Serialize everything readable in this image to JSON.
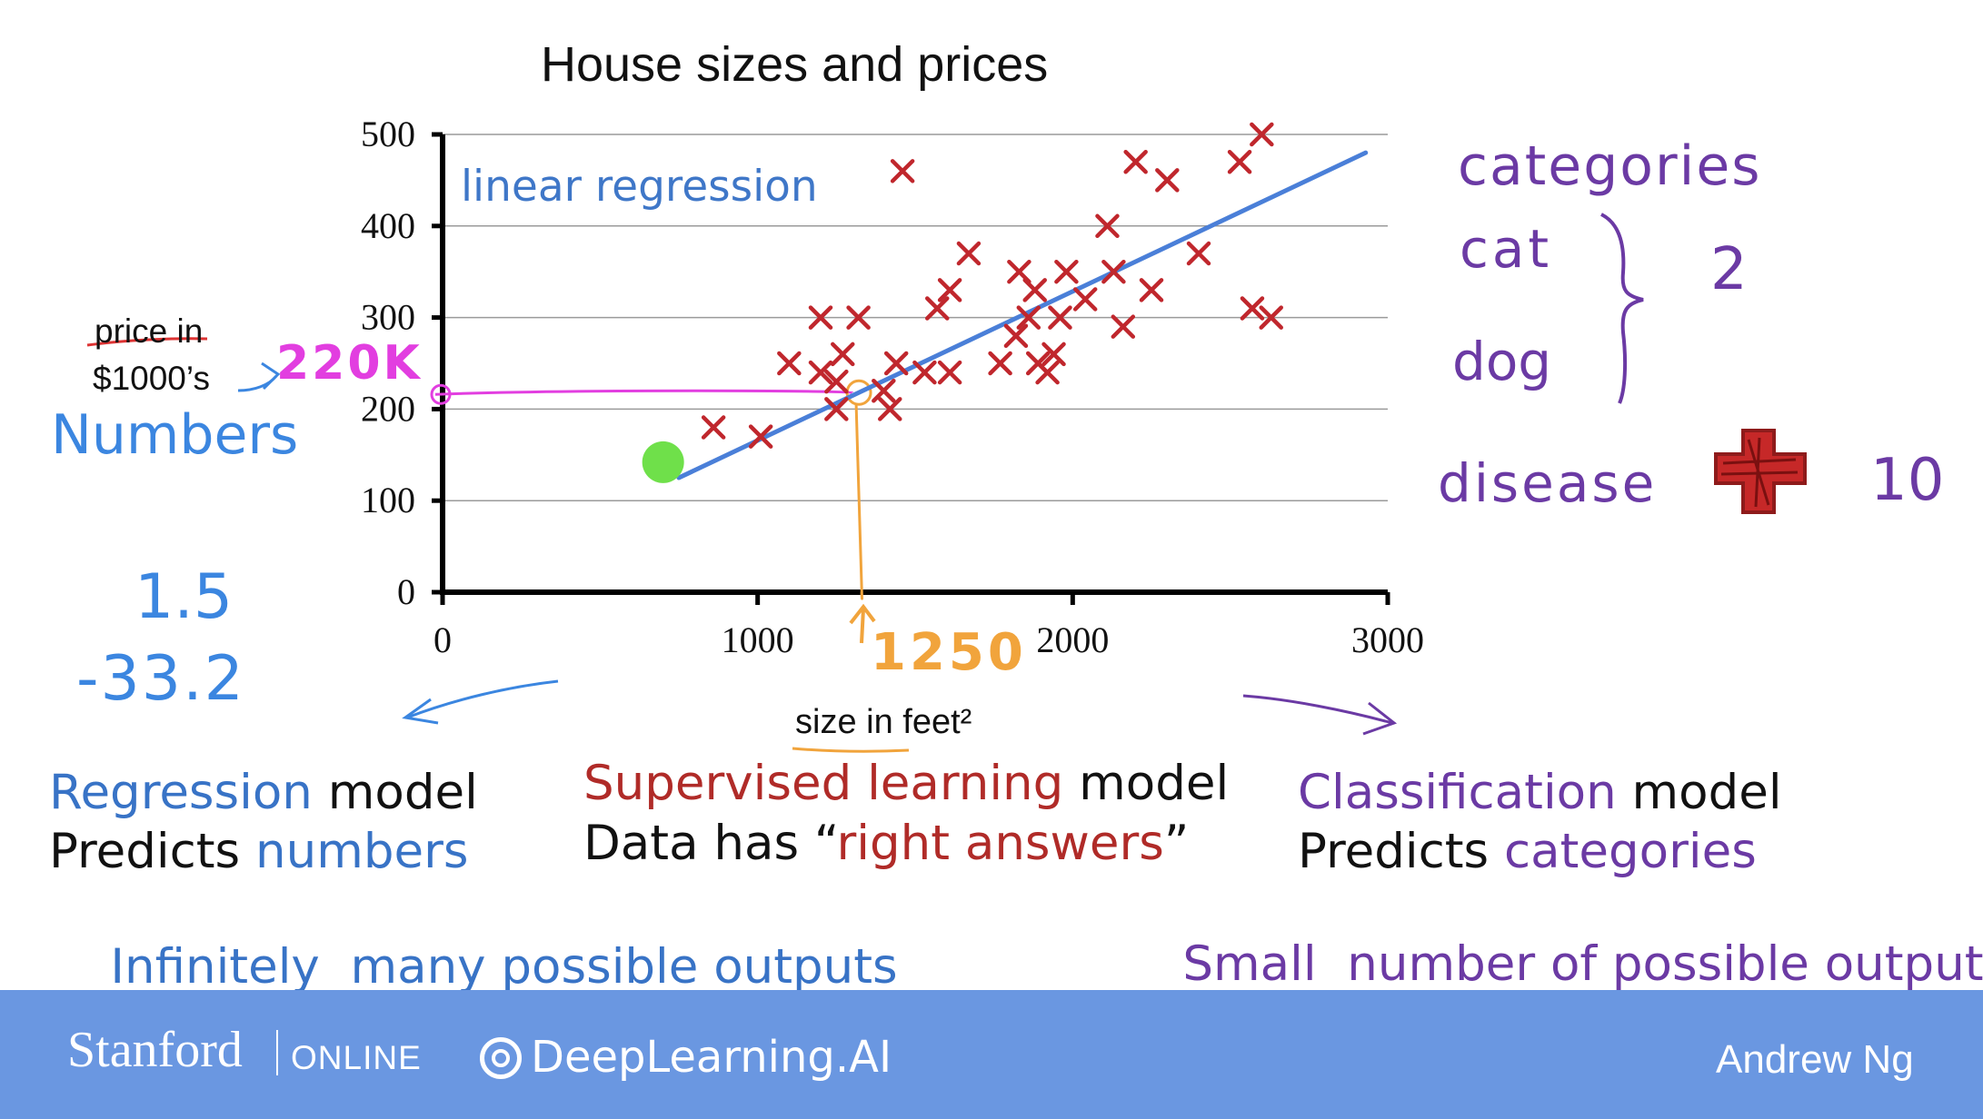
{
  "chart_data": {
    "type": "scatter",
    "title": "House sizes and prices",
    "xlabel": "size in feet²",
    "ylabel": "price in $1000’s",
    "xlim": [
      0,
      3000
    ],
    "ylim": [
      0,
      500
    ],
    "x_ticks": [
      "0",
      "1000",
      "2000",
      "3000"
    ],
    "y_ticks": [
      "0",
      "100",
      "200",
      "300",
      "400",
      "500"
    ],
    "grid": true,
    "series": [
      {
        "name": "",
        "marker": "x",
        "color": "#c0272d",
        "points": [
          [
            860,
            180
          ],
          [
            1010,
            170
          ],
          [
            1100,
            250
          ],
          [
            1200,
            300
          ],
          [
            1200,
            240
          ],
          [
            1250,
            200
          ],
          [
            1250,
            230
          ],
          [
            1270,
            260
          ],
          [
            1320,
            300
          ],
          [
            1400,
            220
          ],
          [
            1420,
            200
          ],
          [
            1440,
            250
          ],
          [
            1460,
            460
          ],
          [
            1530,
            240
          ],
          [
            1570,
            310
          ],
          [
            1610,
            330
          ],
          [
            1610,
            240
          ],
          [
            1670,
            370
          ],
          [
            1770,
            250
          ],
          [
            1820,
            280
          ],
          [
            1830,
            350
          ],
          [
            1860,
            300
          ],
          [
            1880,
            330
          ],
          [
            1890,
            250
          ],
          [
            1920,
            240
          ],
          [
            1940,
            260
          ],
          [
            1960,
            300
          ],
          [
            1980,
            350
          ],
          [
            2040,
            320
          ],
          [
            2110,
            400
          ],
          [
            2130,
            350
          ],
          [
            2160,
            290
          ],
          [
            2200,
            470
          ],
          [
            2250,
            330
          ],
          [
            2300,
            450
          ],
          [
            2400,
            370
          ],
          [
            2530,
            470
          ],
          [
            2570,
            310
          ],
          [
            2600,
            500
          ],
          [
            2630,
            300
          ]
        ]
      }
    ],
    "regression_line": {
      "name": "linear regression",
      "color": "#4a7fd8",
      "x": [
        750,
        2930
      ],
      "y": [
        125,
        480
      ]
    },
    "highlight_point": {
      "x": 700,
      "y": 142,
      "color": "#6fe04a"
    }
  },
  "annotations": {
    "model_label": "linear regression",
    "y_axis_label_line1": "price in",
    "y_axis_label_line2": "$1000’s",
    "price_read": "220K",
    "size_read": "1250",
    "numbers_note": "Numbers",
    "output_example_1": "1.5",
    "output_example_2": "-33.2",
    "categories_title": "categories",
    "category_cat": "cat",
    "category_dog": "dog",
    "category_count": "2",
    "category_disease": "disease",
    "disease_count": "10"
  },
  "captions": {
    "regression": {
      "word": "Regression",
      "rest": "model",
      "predicts": "Predicts",
      "predicts_what": "numbers",
      "outputs": "Infinitely  many possible outputs"
    },
    "supervised": {
      "word": "Supervised learning",
      "rest": "model",
      "data_has": "Data has “",
      "right_answers": "right answers",
      "close_quote": "”"
    },
    "classification": {
      "word": "Classification",
      "rest": "model",
      "predicts": "Predicts",
      "predicts_what": "categories",
      "outputs": "Small  number of possible outputs"
    }
  },
  "footer": {
    "stanford": "Stanford",
    "online": "ONLINE",
    "deeplearning": "DeepLearning.AI",
    "author": "Andrew Ng"
  },
  "colors": {
    "blue_text": "#3873c6",
    "red_text": "#b02b28",
    "purple_text": "#6b3aa4",
    "magenta": "#e23ee0",
    "orange": "#f1a43c",
    "footer_bg": "#6a97e1"
  }
}
